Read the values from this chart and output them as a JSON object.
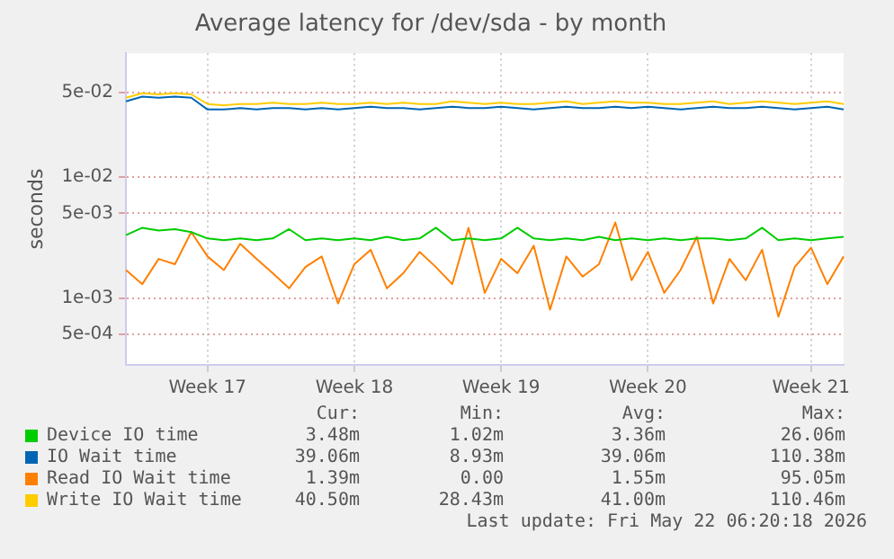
{
  "chart_data": {
    "type": "line",
    "title": "Average latency for /dev/sda - by month",
    "ylabel": "seconds",
    "log": "y",
    "grid": true,
    "legend": "bottom",
    "marker": "none",
    "line_style": "solid",
    "categories": [
      null,
      null,
      null,
      null,
      null,
      "Week 17",
      null,
      null,
      null,
      null,
      null,
      null,
      null,
      null,
      "Week 18",
      null,
      null,
      null,
      null,
      null,
      null,
      null,
      null,
      "Week 19",
      null,
      null,
      null,
      null,
      null,
      null,
      null,
      null,
      "Week 20",
      null,
      null,
      null,
      null,
      null,
      null,
      null,
      null,
      null,
      "Week 21",
      null,
      null
    ],
    "ylim": [
      0.00028,
      0.105
    ],
    "yticks": [
      {
        "value": 0.0005,
        "label": "5e-04"
      },
      {
        "value": 0.001,
        "label": "1e-03"
      },
      {
        "value": 0.005,
        "label": "5e-03"
      },
      {
        "value": 0.01,
        "label": "1e-02"
      },
      {
        "value": 0.05,
        "label": "5e-02"
      }
    ],
    "series": [
      {
        "name": "Device IO time",
        "color": "#00cc00",
        "values": [
          0.0033,
          0.0038,
          0.0036,
          0.0037,
          0.0035,
          0.0031,
          0.003,
          0.0031,
          0.003,
          0.0031,
          0.0037,
          0.003,
          0.0031,
          0.003,
          0.0031,
          0.003,
          0.0032,
          0.003,
          0.0031,
          0.0038,
          0.003,
          0.0031,
          0.003,
          0.0031,
          0.0038,
          0.0031,
          0.003,
          0.0031,
          0.003,
          0.0032,
          0.003,
          0.0031,
          0.003,
          0.0031,
          0.003,
          0.0031,
          0.0031,
          0.003,
          0.0031,
          0.0038,
          0.003,
          0.0031,
          0.003,
          0.0031,
          0.0032
        ]
      },
      {
        "name": "IO Wait time",
        "color": "#0066b3",
        "values": [
          0.042,
          0.046,
          0.045,
          0.046,
          0.045,
          0.036,
          0.036,
          0.037,
          0.036,
          0.037,
          0.037,
          0.036,
          0.037,
          0.036,
          0.037,
          0.038,
          0.037,
          0.037,
          0.036,
          0.037,
          0.038,
          0.037,
          0.037,
          0.038,
          0.037,
          0.036,
          0.037,
          0.038,
          0.037,
          0.037,
          0.038,
          0.037,
          0.038,
          0.037,
          0.036,
          0.037,
          0.038,
          0.037,
          0.037,
          0.038,
          0.037,
          0.036,
          0.037,
          0.038,
          0.036
        ]
      },
      {
        "name": "Read IO Wait time",
        "color": "#ff8000",
        "values": [
          0.0017,
          0.0013,
          0.0021,
          0.0019,
          0.0035,
          0.0022,
          0.0017,
          0.0028,
          0.0021,
          0.0016,
          0.0012,
          0.0018,
          0.0022,
          0.0009,
          0.0019,
          0.0025,
          0.0012,
          0.0016,
          0.0024,
          0.0018,
          0.0013,
          0.0038,
          0.0011,
          0.0021,
          0.0016,
          0.0027,
          0.0008,
          0.0022,
          0.0015,
          0.0019,
          0.0042,
          0.0014,
          0.0024,
          0.0011,
          0.0017,
          0.0032,
          0.0009,
          0.0021,
          0.0014,
          0.0025,
          0.0007,
          0.0018,
          0.0026,
          0.0013,
          0.0022
        ]
      },
      {
        "name": "Write IO Wait time",
        "color": "#ffcc00",
        "values": [
          0.045,
          0.049,
          0.048,
          0.049,
          0.048,
          0.04,
          0.039,
          0.04,
          0.04,
          0.041,
          0.04,
          0.04,
          0.041,
          0.04,
          0.04,
          0.041,
          0.04,
          0.041,
          0.04,
          0.04,
          0.042,
          0.041,
          0.04,
          0.041,
          0.04,
          0.04,
          0.041,
          0.042,
          0.04,
          0.041,
          0.042,
          0.041,
          0.041,
          0.04,
          0.04,
          0.041,
          0.042,
          0.04,
          0.041,
          0.042,
          0.041,
          0.04,
          0.041,
          0.042,
          0.04
        ]
      }
    ],
    "annotations": [
      "Cur:",
      "Min:",
      "Avg:",
      "Max:",
      "3.48m",
      "1.02m",
      "3.36m",
      "26.06m",
      "39.06m",
      "8.93m",
      "39.06m",
      "110.38m",
      "1.39m",
      "0.00",
      "1.55m",
      "95.05m",
      "40.50m",
      "28.43m",
      "41.00m",
      "110.46m",
      "Last update: Fri May 22 06:20:18 2026"
    ]
  }
}
